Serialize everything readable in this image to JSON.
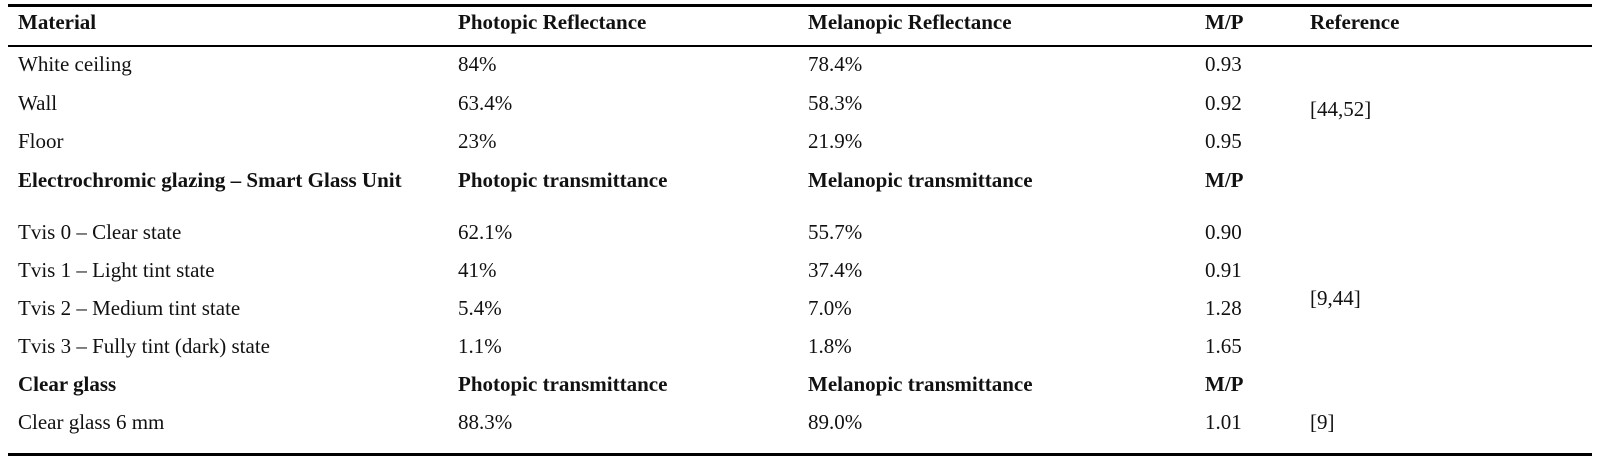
{
  "header": {
    "material": "Material",
    "photopic": "Photopic Reflectance",
    "melanopic": "Melanopic Reflectance",
    "mp": "M/P",
    "reference": "Reference"
  },
  "surfaces": [
    {
      "material": "White ceiling",
      "photopic": "84%",
      "melanopic": "78.4%",
      "mp": "0.93"
    },
    {
      "material": "Wall",
      "photopic": "63.4%",
      "melanopic": "58.3%",
      "mp": "0.92"
    },
    {
      "material": "Floor",
      "photopic": "23%",
      "melanopic": "21.9%",
      "mp": "0.95"
    }
  ],
  "surfaces_reference": "[44,52]",
  "electrochromic_header": {
    "material": "Electrochromic glazing – Smart Glass Unit",
    "photopic": "Photopic transmittance",
    "melanopic": "Melanopic transmittance",
    "mp": "M/P"
  },
  "electrochromic": [
    {
      "material": "Tvis 0 – Clear state",
      "photopic": "62.1%",
      "melanopic": "55.7%",
      "mp": "0.90"
    },
    {
      "material": "Tvis 1 – Light tint state",
      "photopic": "41%",
      "melanopic": "37.4%",
      "mp": "0.91"
    },
    {
      "material": "Tvis 2 – Medium tint state",
      "photopic": "5.4%",
      "melanopic": "7.0%",
      "mp": "1.28"
    },
    {
      "material": "Tvis 3 – Fully tint (dark) state",
      "photopic": "1.1%",
      "melanopic": "1.8%",
      "mp": "1.65"
    }
  ],
  "electrochromic_reference": "[9,44]",
  "clear_header": {
    "material": "Clear glass",
    "photopic": "Photopic transmittance",
    "melanopic": "Melanopic transmittance",
    "mp": "M/P"
  },
  "clear": [
    {
      "material": "Clear glass 6 mm",
      "photopic": "88.3%",
      "melanopic": "89.0%",
      "mp": "1.01"
    }
  ],
  "clear_reference": "[9]"
}
